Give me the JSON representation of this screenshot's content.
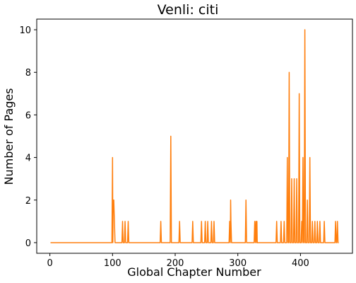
{
  "chart_data": {
    "type": "line",
    "title": "Venli: citi",
    "xlabel": "Global Chapter Number",
    "ylabel": "Number of Pages",
    "xlim": [
      -21,
      483
    ],
    "ylim": [
      -0.5,
      10.5
    ],
    "xticks": [
      0,
      100,
      200,
      300,
      400
    ],
    "yticks": [
      0,
      2,
      4,
      6,
      8,
      10
    ],
    "grid": false,
    "legend": "none",
    "series": [
      {
        "color": "#ff7f0e",
        "points": [
          [
            1,
            0
          ],
          [
            99,
            0
          ],
          [
            100,
            4
          ],
          [
            100.5,
            0
          ],
          [
            101,
            2
          ],
          [
            102,
            2
          ],
          [
            103,
            1
          ],
          [
            104,
            0
          ],
          [
            115,
            0
          ],
          [
            116,
            1
          ],
          [
            117,
            0
          ],
          [
            119,
            0
          ],
          [
            120,
            1
          ],
          [
            121,
            0
          ],
          [
            124,
            0
          ],
          [
            125,
            1
          ],
          [
            126,
            0
          ],
          [
            176,
            0
          ],
          [
            177,
            1
          ],
          [
            178,
            0
          ],
          [
            192,
            0
          ],
          [
            193,
            5
          ],
          [
            194,
            0
          ],
          [
            206,
            0
          ],
          [
            207,
            1
          ],
          [
            208,
            0
          ],
          [
            227,
            0
          ],
          [
            228,
            1
          ],
          [
            229,
            0
          ],
          [
            241,
            0
          ],
          [
            242,
            1
          ],
          [
            243,
            0
          ],
          [
            247,
            0
          ],
          [
            248,
            1
          ],
          [
            249,
            0
          ],
          [
            251,
            0
          ],
          [
            252,
            1
          ],
          [
            253,
            0
          ],
          [
            257,
            0
          ],
          [
            258,
            1
          ],
          [
            259,
            0
          ],
          [
            261,
            0
          ],
          [
            262,
            1
          ],
          [
            263,
            0
          ],
          [
            286,
            0
          ],
          [
            287,
            1
          ],
          [
            288,
            0
          ],
          [
            288.5,
            2
          ],
          [
            289,
            1
          ],
          [
            290,
            0
          ],
          [
            312,
            0
          ],
          [
            313,
            2
          ],
          [
            314,
            0
          ],
          [
            326,
            0
          ],
          [
            327,
            1
          ],
          [
            328,
            0
          ],
          [
            329,
            1
          ],
          [
            330,
            0
          ],
          [
            330.5,
            1
          ],
          [
            331,
            0
          ],
          [
            361,
            0
          ],
          [
            362,
            1
          ],
          [
            363,
            0
          ],
          [
            368,
            0
          ],
          [
            369,
            1
          ],
          [
            370,
            0
          ],
          [
            373,
            0
          ],
          [
            374,
            1
          ],
          [
            375,
            0
          ],
          [
            378,
            0
          ],
          [
            379,
            4
          ],
          [
            380,
            0
          ],
          [
            381,
            0
          ],
          [
            382,
            8
          ],
          [
            383,
            0
          ],
          [
            385,
            0
          ],
          [
            386,
            3
          ],
          [
            387,
            0
          ],
          [
            389,
            0
          ],
          [
            390,
            3
          ],
          [
            391,
            0
          ],
          [
            393,
            0
          ],
          [
            394,
            3
          ],
          [
            395,
            0
          ],
          [
            397,
            0
          ],
          [
            398,
            7
          ],
          [
            399,
            0
          ],
          [
            401,
            0
          ],
          [
            402,
            1
          ],
          [
            403,
            0
          ],
          [
            404,
            4
          ],
          [
            405,
            0
          ],
          [
            406,
            0
          ],
          [
            407,
            10
          ],
          [
            408,
            0
          ],
          [
            410,
            0
          ],
          [
            411,
            2
          ],
          [
            412,
            0
          ],
          [
            414,
            0
          ],
          [
            415,
            4
          ],
          [
            416,
            0
          ],
          [
            418,
            0
          ],
          [
            419,
            1
          ],
          [
            420,
            0
          ],
          [
            422,
            0
          ],
          [
            423,
            1
          ],
          [
            424,
            0
          ],
          [
            426,
            0
          ],
          [
            427,
            1
          ],
          [
            428,
            0
          ],
          [
            430,
            0
          ],
          [
            431,
            1
          ],
          [
            432,
            0
          ],
          [
            437,
            0
          ],
          [
            438,
            1
          ],
          [
            439,
            0
          ],
          [
            455,
            0
          ],
          [
            456,
            1
          ],
          [
            457,
            0
          ],
          [
            458,
            0
          ],
          [
            459,
            1
          ],
          [
            460,
            0
          ],
          [
            461,
            0
          ]
        ]
      }
    ]
  }
}
